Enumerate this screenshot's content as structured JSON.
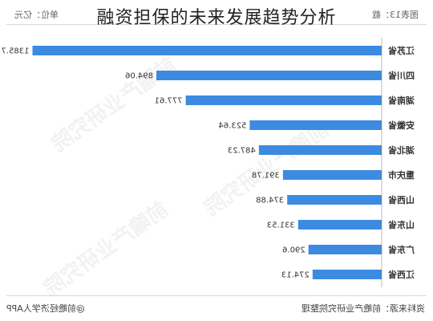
{
  "title": "融资担保的未来发展趋势分析",
  "header": {
    "figure_label": "图表13：截",
    "unit": "单位：亿元"
  },
  "footer": {
    "source": "资料来源：前瞻产业研究院整理",
    "brand": "@前瞻经济学人APP"
  },
  "watermark_text": "前瞻产业研究院",
  "chart_data": {
    "type": "bar",
    "orientation": "horizontal",
    "mirrored": true,
    "categories": [
      "江苏省",
      "四川省",
      "湖南省",
      "安徽省",
      "湖北省",
      "重庆市",
      "山西省",
      "山东省",
      "广东省",
      "江西省"
    ],
    "values": [
      1385.7,
      894.06,
      777.61,
      523.64,
      487.23,
      391.78,
      374.88,
      331.53,
      290.6,
      274.13
    ],
    "value_labels": [
      "1385.7",
      "894.06",
      "777.61",
      "523.64",
      "487.23",
      "391.78",
      "374.88",
      "331.53",
      "290.6",
      "274.13"
    ],
    "xlim": [
      0,
      1400
    ],
    "bar_color": "#3c8be0",
    "grid": false
  }
}
